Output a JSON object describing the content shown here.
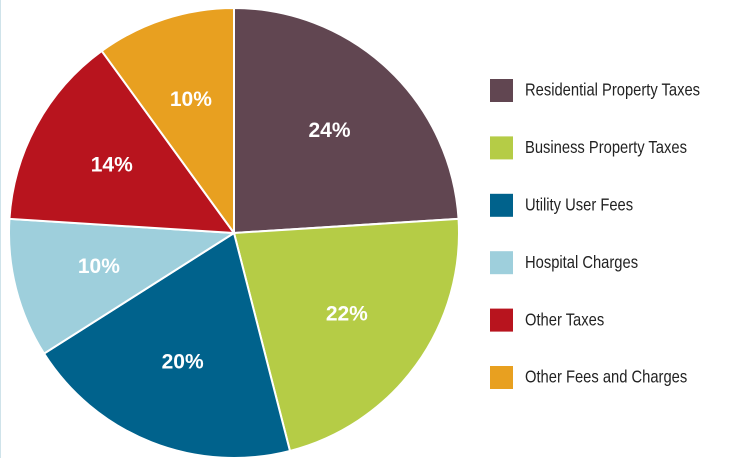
{
  "chart_data": {
    "type": "pie",
    "categories": [
      "Residential Property Taxes",
      "Business Property Taxes",
      "Utility User Fees",
      "Hospital Charges",
      "Other Taxes",
      "Other Fees and Charges"
    ],
    "values": [
      24,
      22,
      20,
      10,
      14,
      10
    ],
    "value_labels": [
      "24%",
      "22%",
      "20%",
      "10%",
      "14%",
      "10%"
    ],
    "colors": [
      "#614651",
      "#b5cc46",
      "#00628c",
      "#9ecfdc",
      "#b8141e",
      "#e8a020"
    ],
    "legend": "right"
  }
}
